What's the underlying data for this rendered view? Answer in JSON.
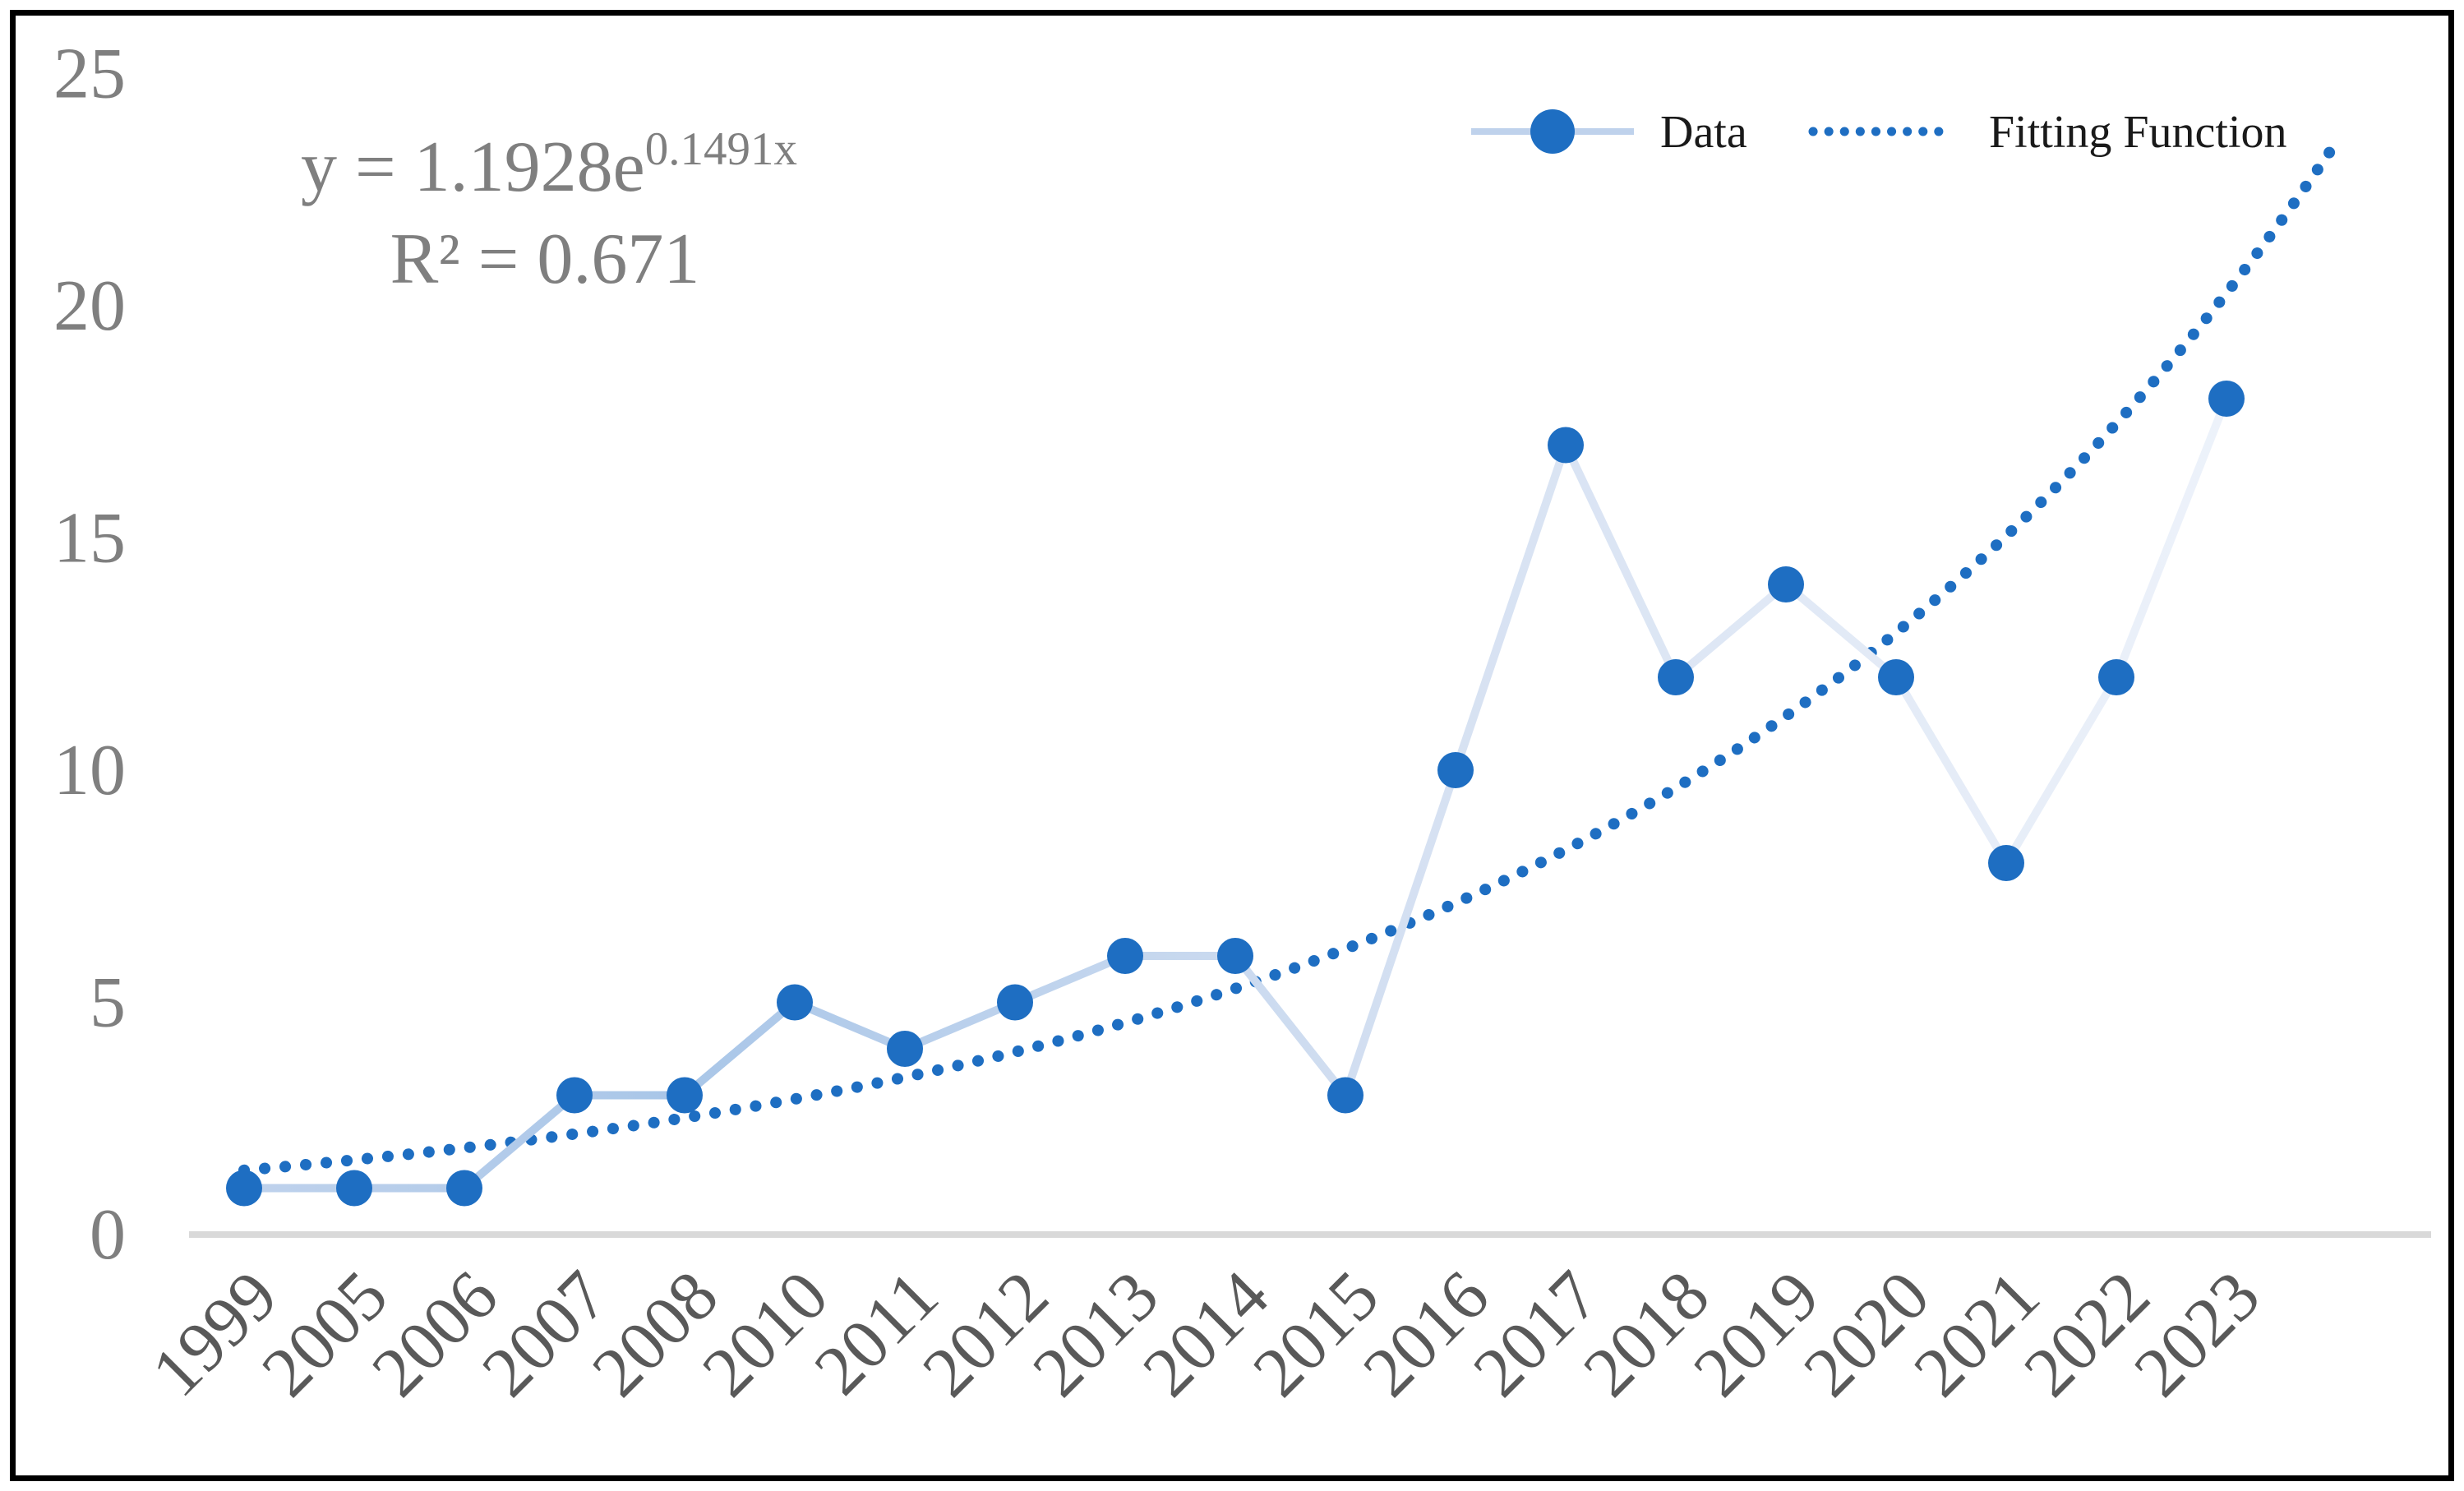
{
  "figure": {
    "background": "#ffffff",
    "border_color": "#000000"
  },
  "equation": {
    "line1_base": "y = 1.1928e",
    "line1_sup": "0.1491x",
    "line2": "R² = 0.671"
  },
  "legend": {
    "data_label": "Data",
    "fit_label": "Fitting Function"
  },
  "chart_data": {
    "type": "line",
    "categories": [
      "1999",
      "2005",
      "2006",
      "2007",
      "2008",
      "2010",
      "2011",
      "2012",
      "2013",
      "2014",
      "2015",
      "2016",
      "2017",
      "2018",
      "2019",
      "2020",
      "2021",
      "2022",
      "2023"
    ],
    "series": [
      {
        "name": "Data",
        "values": [
          1,
          1,
          1,
          3,
          3,
          5,
          4,
          5,
          6,
          6,
          3,
          10,
          17,
          12,
          14,
          12,
          8,
          12,
          18
        ]
      }
    ],
    "trendline": {
      "name": "Fitting Function",
      "type": "exponential",
      "a": 1.1928,
      "b": 0.1491,
      "equation": "y = 1.1928e^(0.1491x)",
      "r2": 0.671,
      "x_start_index": 1,
      "x_end_index": 20
    },
    "title": "",
    "xlabel": "",
    "ylabel": "",
    "ylim": [
      0,
      25
    ],
    "yticks": [
      0,
      5,
      10,
      15,
      20,
      25
    ],
    "grid": false,
    "legend_position": "top-right",
    "x_tick_rotation": 45
  },
  "colors": {
    "marker": "#1E6EC2",
    "trend": "#1E6EC2",
    "axis": "#D9D9D9",
    "y_tick_text": "#7F7F7F",
    "x_tick_text": "#595959",
    "legend_text": "#1A1A1A",
    "equation_text": "#7F7F7F",
    "line_gradient": [
      "#BFD2EC",
      "#A9C6E8",
      "#D6E1F2",
      "#EDF2FA"
    ]
  }
}
